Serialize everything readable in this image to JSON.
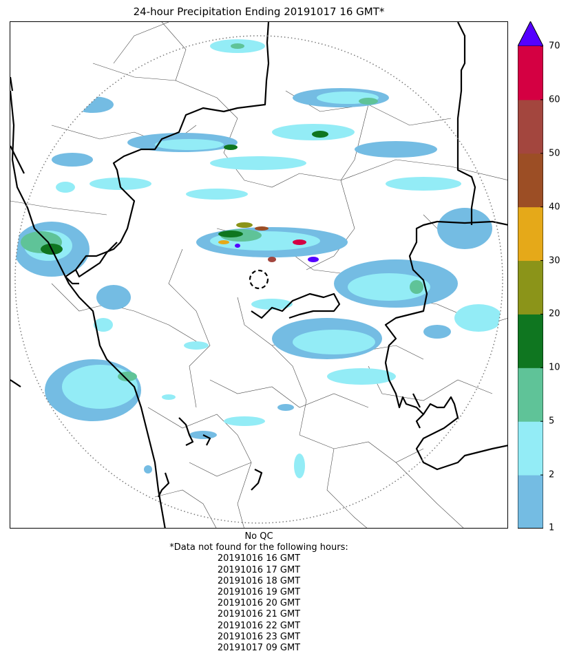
{
  "title": "24-hour Precipitation Ending 20191017 16 GMT*",
  "legend": {
    "ticks": [
      "1",
      "2",
      "5",
      "10",
      "20",
      "30",
      "40",
      "50",
      "60",
      "70"
    ],
    "colors": [
      "#74bce3",
      "#93ecf6",
      "#5fc398",
      "#0f7620",
      "#8b9419",
      "#e5a919",
      "#9c4e25",
      "#a3463e",
      "#d40042"
    ],
    "extend_color": "#5400ff"
  },
  "map": {
    "coverage_ring": "dotted",
    "radar_site_marker": "dashed-circle",
    "boundaries": [
      "state-borders-thick",
      "district-borders-thin"
    ],
    "coastline": "thick-black"
  },
  "notes": {
    "qc": "No QC",
    "missing_header": "*Data not found for the following hours:",
    "missing_hours": [
      "20191016 16 GMT",
      "20191016 17 GMT",
      "20191016 18 GMT",
      "20191016 19 GMT",
      "20191016 20 GMT",
      "20191016 21 GMT",
      "20191016 22 GMT",
      "20191016 23 GMT",
      "20191017 09 GMT"
    ]
  }
}
